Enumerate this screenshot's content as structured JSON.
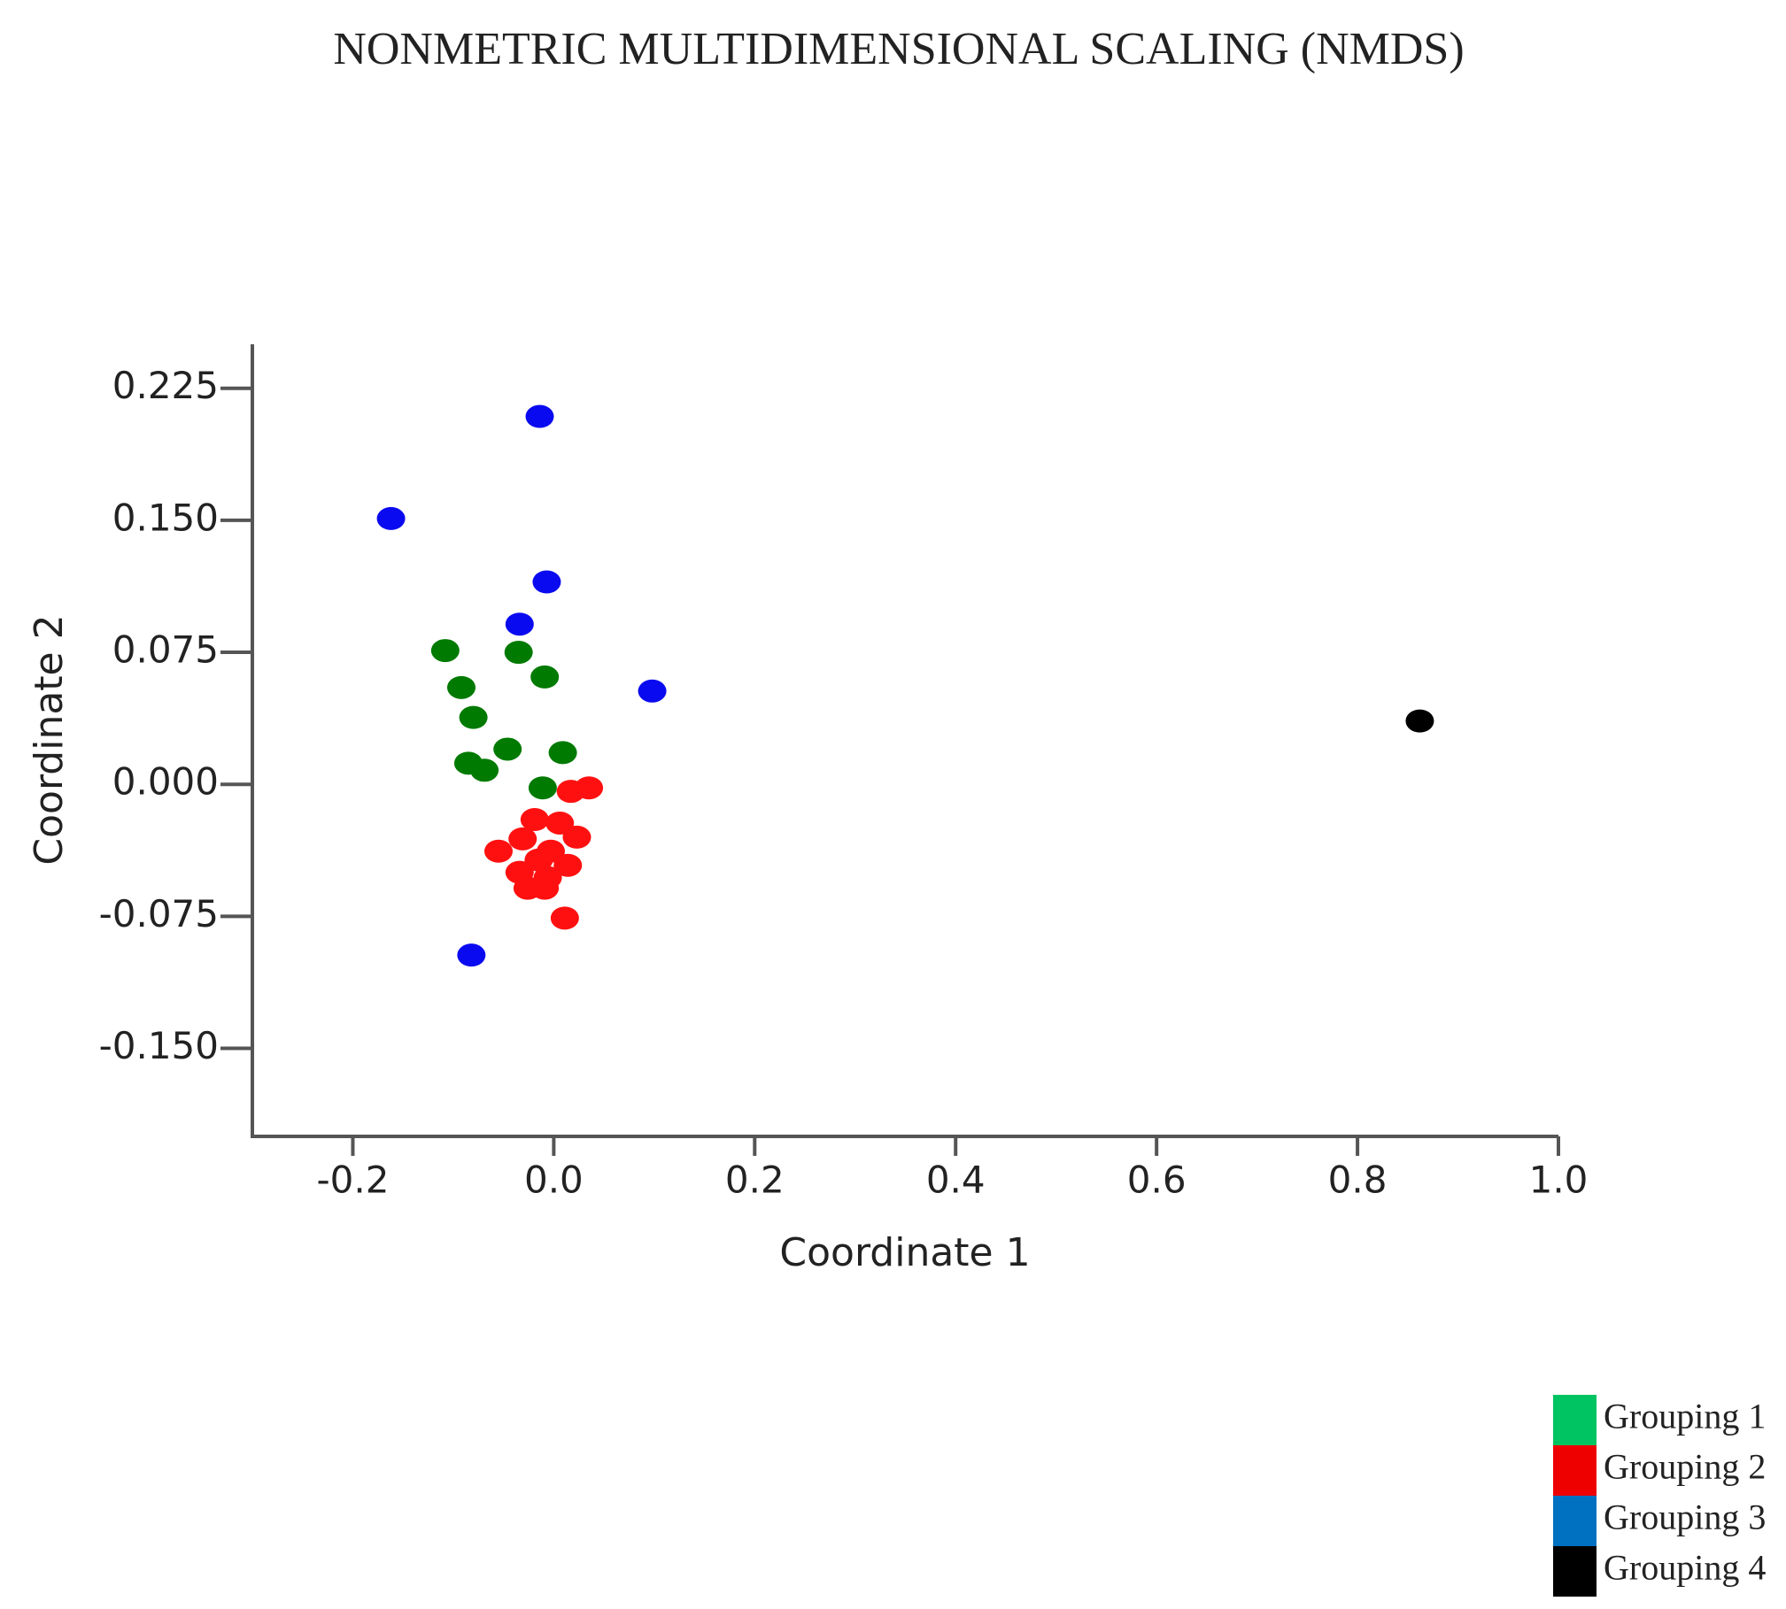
{
  "chart_data": {
    "type": "scatter",
    "title": "NONMETRIC MULTIDIMENSIONAL SCALING (NMDS)",
    "x_label": "Coordinate 1",
    "y_label": "Coordinate 2",
    "xlim": [
      -0.3,
      1.0
    ],
    "xticks": [
      -0.2,
      {
        "value": 0,
        "label": "0.0"
      },
      0.2,
      0.4,
      0.6,
      0.8,
      {
        "value": 1,
        "label": "1.0"
      }
    ],
    "ylim": [
      -0.2,
      0.25
    ],
    "yticks": [
      {
        "value": -0.15,
        "label": "-0.150"
      },
      {
        "value": -0.075,
        "label": "-0.075"
      },
      {
        "value": 0,
        "label": "0.000"
      },
      {
        "value": 0.075,
        "label": "0.075"
      },
      {
        "value": 0.15,
        "label": "0.150"
      },
      {
        "value": 0.225,
        "label": "0.225"
      }
    ],
    "grid": false,
    "legend_position": "bottom-right",
    "series": [
      {
        "name": "Grouping 1",
        "color": "#007a00",
        "legend_color": "#00c462",
        "x": [
          -0.108,
          -0.035,
          -0.009,
          -0.092,
          -0.08,
          -0.046,
          0.009,
          -0.085,
          -0.069,
          -0.011
        ],
        "values": [
          0.076,
          0.075,
          0.061,
          0.055,
          0.038,
          0.02,
          0.018,
          0.012,
          0.008,
          -0.002
        ]
      },
      {
        "name": "Grouping 2",
        "color": "#ff1010",
        "legend_color": "#ee0000",
        "x": [
          0.035,
          0.017,
          -0.019,
          0.006,
          0.023,
          -0.031,
          -0.055,
          -0.003,
          -0.015,
          0.014,
          -0.034,
          -0.006,
          -0.026,
          -0.009,
          0.011
        ],
        "values": [
          -0.002,
          -0.004,
          -0.02,
          -0.022,
          -0.03,
          -0.031,
          -0.038,
          -0.038,
          -0.043,
          -0.046,
          -0.05,
          -0.053,
          -0.059,
          -0.059,
          -0.076
        ]
      },
      {
        "name": "Grouping 3",
        "color": "#0a0af0",
        "legend_color": "#0070c0",
        "x": [
          -0.014,
          -0.162,
          -0.007,
          -0.034,
          0.098,
          -0.082
        ],
        "values": [
          0.209,
          0.151,
          0.115,
          0.091,
          0.053,
          -0.097
        ]
      },
      {
        "name": "Grouping 4",
        "color": "#000000",
        "legend_color": "#000000",
        "x": [
          0.862
        ],
        "values": [
          0.036
        ]
      }
    ]
  }
}
